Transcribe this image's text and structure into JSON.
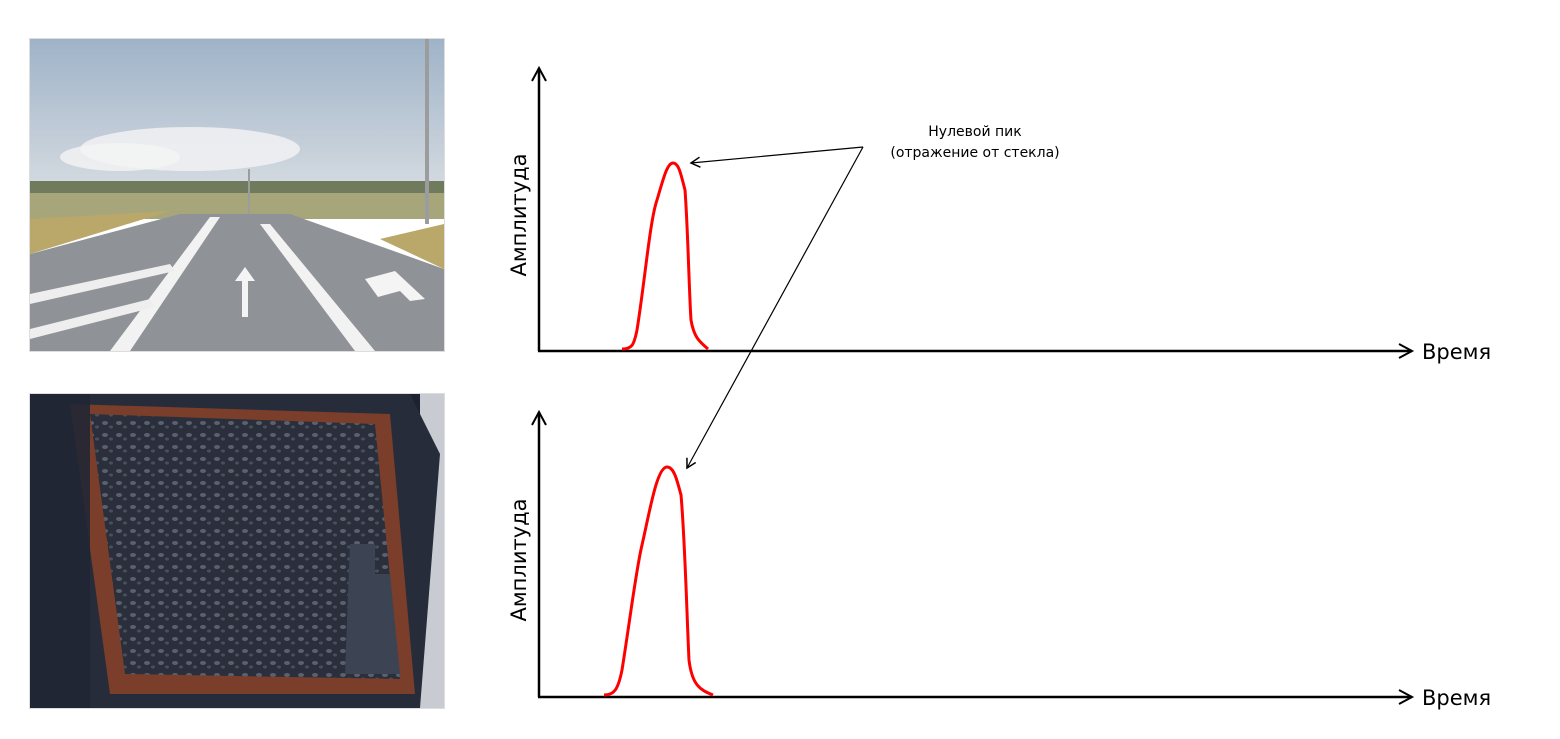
{
  "annotation": {
    "line1": "Нулевой пик",
    "line2": "(отражение от стекла)"
  },
  "charts": [
    {
      "ylabel": "Амплитуда",
      "xlabel": "Время",
      "peak_color": "#ff0000"
    },
    {
      "ylabel": "Амплитуда",
      "xlabel": "Время",
      "peak_color": "#ff0000"
    }
  ],
  "photos": [
    {
      "subject": "clean road view through windshield"
    },
    {
      "subject": "dirty sensor glass covered in mud"
    }
  ]
}
